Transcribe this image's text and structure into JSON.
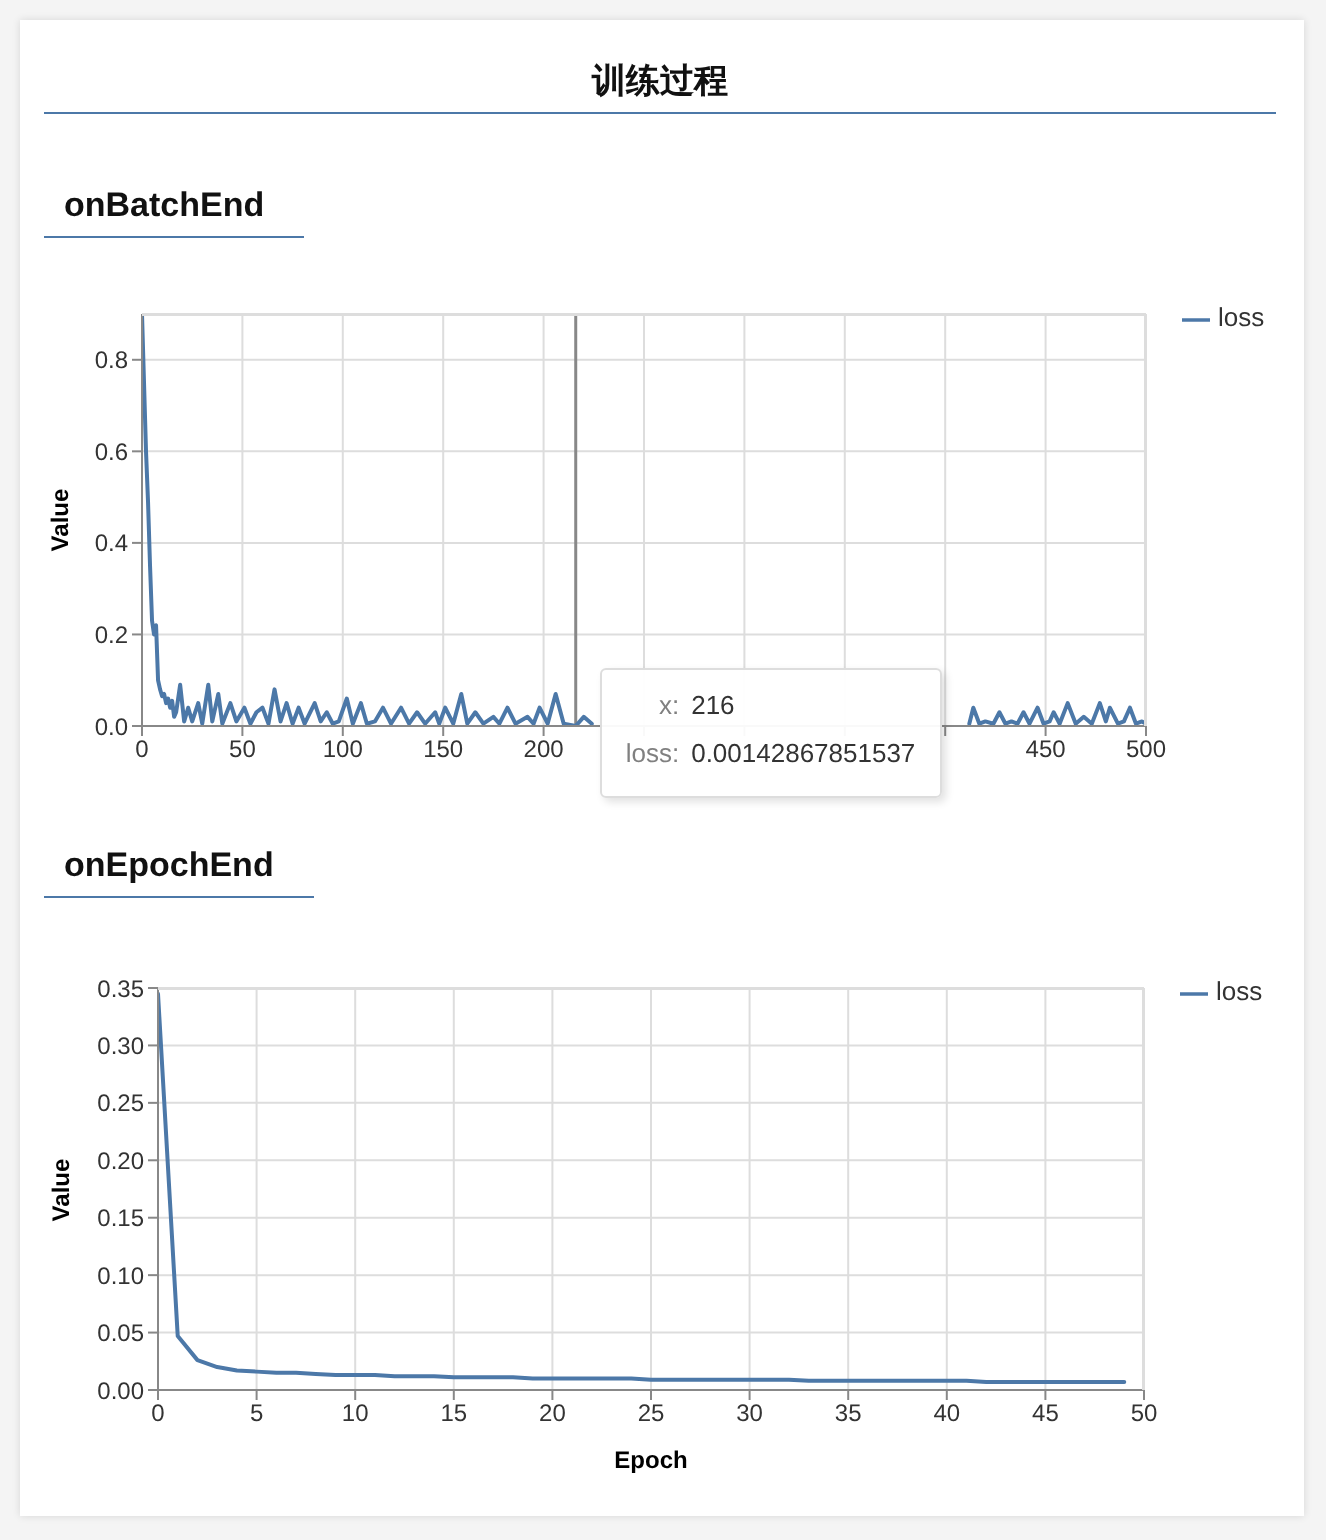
{
  "chart_data": [
    {
      "type": "line",
      "title": "训练过程",
      "subtitle": "onBatchEnd",
      "ylabel": "Value",
      "x": [
        0,
        1,
        2,
        3,
        4,
        5,
        6,
        7,
        8,
        9,
        10,
        11,
        12,
        13,
        14,
        15,
        16,
        17,
        19,
        21,
        23,
        25,
        28,
        30,
        33,
        35,
        38,
        40,
        44,
        47,
        51,
        54,
        57,
        60,
        63,
        66,
        69,
        72,
        75,
        78,
        81,
        86,
        89,
        92,
        95,
        98,
        102,
        105,
        109,
        112,
        116,
        120,
        124,
        129,
        133,
        137,
        141,
        146,
        148,
        151,
        155,
        159,
        162,
        166,
        170,
        175,
        178,
        182,
        186,
        192,
        195,
        198,
        202,
        206,
        210,
        216,
        220,
        224,
        300,
        412,
        414,
        417,
        420,
        424,
        427,
        430,
        433,
        436,
        439,
        442,
        446,
        449,
        452,
        454,
        457,
        461,
        465,
        469,
        473,
        477,
        480,
        482,
        486,
        489,
        492,
        495,
        498,
        500
      ],
      "series": [
        {
          "name": "loss",
          "color": "#4c78a8",
          "values": [
            0.9,
            0.75,
            0.6,
            0.49,
            0.35,
            0.23,
            0.2,
            0.22,
            0.1,
            0.08,
            0.065,
            0.07,
            0.05,
            0.06,
            0.04,
            0.055,
            0.02,
            0.03,
            0.09,
            0.01,
            0.04,
            0.01,
            0.05,
            0.005,
            0.09,
            0.01,
            0.07,
            0.005,
            0.05,
            0.01,
            0.04,
            0.005,
            0.03,
            0.04,
            0.005,
            0.08,
            0.01,
            0.05,
            0.005,
            0.04,
            0.005,
            0.05,
            0.01,
            0.03,
            0.005,
            0.01,
            0.06,
            0.005,
            0.05,
            0.005,
            0.01,
            0.04,
            0.005,
            0.04,
            0.005,
            0.03,
            0.005,
            0.03,
            0.005,
            0.04,
            0.005,
            0.07,
            0.005,
            0.03,
            0.005,
            0.02,
            0.005,
            0.04,
            0.005,
            0.02,
            0.005,
            0.04,
            0.005,
            0.07,
            0.005,
            0,
            0.02,
            0.005,
            null,
            0.005,
            0.04,
            0.005,
            0.01,
            0.005,
            0.03,
            0.005,
            0.01,
            0.005,
            0.03,
            0.005,
            0.04,
            0.005,
            0.01,
            0.03,
            0.005,
            0.05,
            0.005,
            0.02,
            0.005,
            0.05,
            0.01,
            0.04,
            0.005,
            0.01,
            0.04,
            0.005,
            0.01,
            0.005
          ]
        }
      ],
      "xlim": [
        0,
        500
      ],
      "xticks": [
        0,
        50,
        100,
        150,
        200,
        {
          "value": 250,
          "label": null
        },
        {
          "value": 300,
          "label": null
        },
        {
          "value": 350,
          "label": null
        },
        {
          "value": 400,
          "label": null
        },
        450,
        500
      ],
      "ylim": [
        0,
        0.9
      ],
      "yticks": [
        {
          "value": 0,
          "label": "0.0"
        },
        0.2,
        0.4,
        0.6,
        0.8
      ],
      "grid": true,
      "legend": "top right",
      "marker": "none",
      "ref_lines": [
        {
          "axis": "x",
          "value": 216,
          "color": "#888888"
        }
      ],
      "annotations": [
        {
          "text": "x: 216\nloss: 0.00142867851537",
          "x": 216,
          "y": 0
        }
      ]
    },
    {
      "type": "line",
      "title": "onEpochEnd",
      "xlabel": "Epoch",
      "ylabel": "Value",
      "x": [
        0,
        1,
        2,
        3,
        4,
        5,
        6,
        7,
        8,
        9,
        10,
        11,
        12,
        13,
        14,
        15,
        16,
        17,
        18,
        19,
        20,
        21,
        22,
        23,
        24,
        25,
        26,
        27,
        28,
        29,
        30,
        31,
        32,
        33,
        34,
        35,
        36,
        37,
        38,
        39,
        40,
        41,
        42,
        43,
        44,
        45,
        46,
        47,
        48,
        49
      ],
      "series": [
        {
          "name": "loss",
          "color": "#4c78a8",
          "values": [
            0.345,
            0.047,
            0.026,
            0.02,
            0.017,
            0.016,
            0.015,
            0.015,
            0.014,
            0.013,
            0.013,
            0.013,
            0.012,
            0.012,
            0.012,
            0.011,
            0.011,
            0.011,
            0.011,
            0.01,
            0.01,
            0.01,
            0.01,
            0.01,
            0.01,
            0.009,
            0.009,
            0.009,
            0.009,
            0.009,
            0.009,
            0.009,
            0.009,
            0.008,
            0.008,
            0.008,
            0.008,
            0.008,
            0.008,
            0.008,
            0.008,
            0.008,
            0.007,
            0.007,
            0.007,
            0.007,
            0.007,
            0.007,
            0.007,
            0.007
          ]
        }
      ],
      "xlim": [
        0,
        50
      ],
      "xticks": [
        0,
        5,
        10,
        15,
        20,
        25,
        30,
        35,
        40,
        45,
        50
      ],
      "ylim": [
        0,
        0.35
      ],
      "yticks": [
        {
          "value": 0,
          "label": "0.00"
        },
        {
          "value": 0.05,
          "label": "0.05"
        },
        {
          "value": 0.1,
          "label": "0.10"
        },
        {
          "value": 0.15,
          "label": "0.15"
        },
        {
          "value": 0.2,
          "label": "0.20"
        },
        {
          "value": 0.25,
          "label": "0.25"
        },
        {
          "value": 0.3,
          "label": "0.30"
        },
        {
          "value": 0.35,
          "label": "0.35"
        }
      ],
      "grid": true,
      "legend": "top right",
      "marker": "none"
    }
  ]
}
